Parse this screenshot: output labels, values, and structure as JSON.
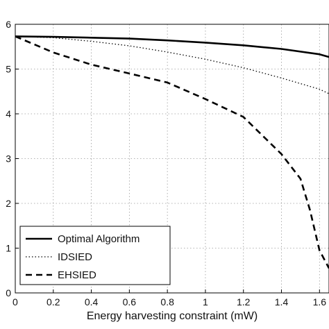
{
  "chart_data": {
    "type": "line",
    "title": "",
    "xlabel": "Energy harvesting constraint (mW)",
    "ylabel": "",
    "xlim": [
      0,
      1.65
    ],
    "ylim": [
      0,
      6
    ],
    "x_ticks": [
      "0",
      "0.2",
      "0.4",
      "0.6",
      "0.8",
      "1",
      "1.2",
      "1.4",
      "1.6"
    ],
    "x_tick_values": [
      0,
      0.2,
      0.4,
      0.6,
      0.8,
      1.0,
      1.2,
      1.4,
      1.6
    ],
    "y_ticks": [
      "0",
      "1",
      "2",
      "3",
      "4",
      "5",
      "6"
    ],
    "y_tick_values": [
      0,
      1,
      2,
      3,
      4,
      5,
      6
    ],
    "grid": true,
    "legend_position": "bottom-left",
    "series": [
      {
        "name": "Optimal Algorithm",
        "style": "solid",
        "color": "#000000",
        "x": [
          0,
          0.2,
          0.4,
          0.6,
          0.8,
          1.0,
          1.2,
          1.4,
          1.6,
          1.65
        ],
        "y": [
          5.73,
          5.72,
          5.7,
          5.68,
          5.64,
          5.59,
          5.53,
          5.45,
          5.33,
          5.27
        ]
      },
      {
        "name": "IDSIED",
        "style": "dotted",
        "color": "#000000",
        "x": [
          0,
          0.2,
          0.4,
          0.6,
          0.8,
          1.0,
          1.2,
          1.4,
          1.6,
          1.65
        ],
        "y": [
          5.73,
          5.7,
          5.62,
          5.52,
          5.38,
          5.22,
          5.03,
          4.8,
          4.55,
          4.45
        ]
      },
      {
        "name": "EHSIED",
        "style": "dashed",
        "color": "#000000",
        "x": [
          0,
          0.2,
          0.4,
          0.6,
          0.8,
          1.0,
          1.2,
          1.4,
          1.5,
          1.55,
          1.6,
          1.65
        ],
        "y": [
          5.73,
          5.37,
          5.1,
          4.9,
          4.7,
          4.33,
          3.93,
          3.1,
          2.55,
          1.85,
          0.95,
          0.55
        ]
      }
    ]
  }
}
